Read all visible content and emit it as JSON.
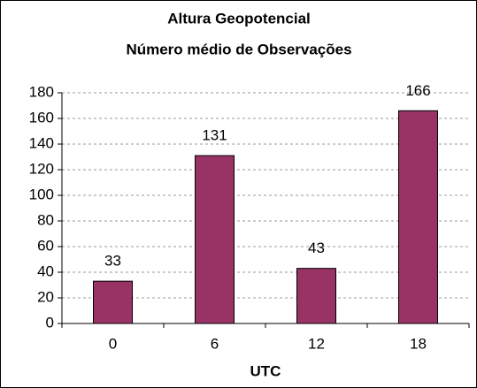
{
  "chart_data": {
    "type": "bar",
    "title": "Altura Geopotencial",
    "subtitle": "Número médio de Observações",
    "x_label": "UTC",
    "categories": [
      "0",
      "6",
      "12",
      "18"
    ],
    "values": [
      33,
      131,
      43,
      166
    ],
    "color": "#993366",
    "ylim": [
      0,
      180
    ],
    "yticks": [
      0,
      20,
      40,
      60,
      80,
      100,
      120,
      140,
      160,
      180
    ],
    "grid": true
  }
}
